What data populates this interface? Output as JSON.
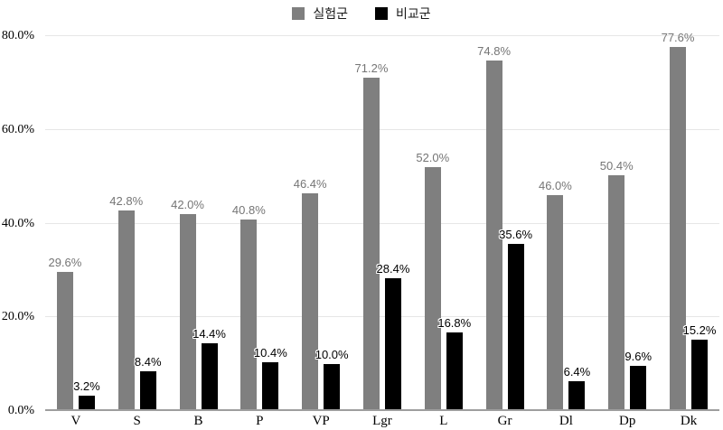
{
  "colors": {
    "series_experimental": "#7f7f7f",
    "series_comparison": "#000000",
    "gridline": "#e6e6e6",
    "axis_line": "#9e9e9e",
    "label_gray": "#757575",
    "background": "#ffffff"
  },
  "chart_data": {
    "type": "bar",
    "title": "",
    "xlabel": "",
    "ylabel": "",
    "categories": [
      "V",
      "S",
      "B",
      "P",
      "VP",
      "Lgr",
      "L",
      "Gr",
      "Dl",
      "Dp",
      "Dk"
    ],
    "series": [
      {
        "name": "실험군",
        "color": "#7f7f7f",
        "values": [
          29.6,
          42.8,
          42.0,
          40.8,
          46.4,
          71.2,
          52.0,
          74.8,
          46.0,
          50.4,
          77.6
        ],
        "labels": [
          "29.6%",
          "42.8%",
          "42.0%",
          "40.8%",
          "46.4%",
          "71.2%",
          "52.0%",
          "74.8%",
          "46.0%",
          "50.4%",
          "77.6%"
        ]
      },
      {
        "name": "비교군",
        "color": "#000000",
        "values": [
          3.2,
          8.4,
          14.4,
          10.4,
          10.0,
          28.4,
          16.8,
          35.6,
          6.4,
          9.6,
          15.2
        ],
        "labels": [
          "3.2%",
          "8.4%",
          "14.4%",
          "10.4%",
          "10.0%",
          "28.4%",
          "16.8%",
          "35.6%",
          "6.4%",
          "9.6%",
          "15.2%"
        ]
      }
    ],
    "ylim": [
      0,
      80
    ],
    "yticks": [
      {
        "value": 0,
        "label": "0.0%"
      },
      {
        "value": 20,
        "label": "20.0%"
      },
      {
        "value": 40,
        "label": "40.0%"
      },
      {
        "value": 60,
        "label": "60.0%"
      },
      {
        "value": 80,
        "label": "80.0%"
      }
    ],
    "grid": true,
    "legend_position": "top"
  }
}
